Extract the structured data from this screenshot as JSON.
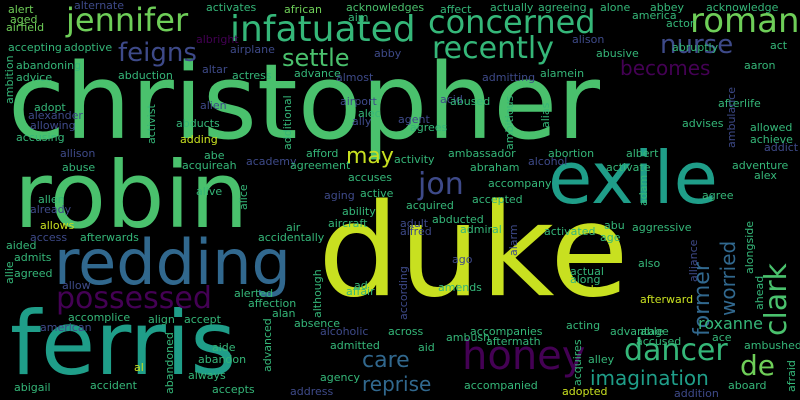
{
  "background": "#000000",
  "palette": {
    "yellow_green": "#c8e020",
    "green": "#4ac16d",
    "teal": "#1f9e89",
    "blue": "#31688e",
    "indigo": "#3e4a89",
    "purple": "#440154",
    "lime": "#6ece58",
    "sea": "#35b779"
  },
  "words": {
    "christopher": "christopher",
    "duke": "duke",
    "robin": "robin",
    "ferris": "ferris",
    "exile": "exile",
    "redding": "redding",
    "infatuated": "infatuated",
    "concerned": "concerned",
    "jennifer": "jennifer",
    "roman": "roman",
    "recently": "recently",
    "settle": "settle",
    "feigns": "feigns",
    "nurse": "nurse",
    "becomes": "becomes",
    "possessed": "possessed",
    "honey": "honey",
    "dancer": "dancer",
    "clark": "clark",
    "former": "former",
    "worried": "worried",
    "roxanne": "roxanne",
    "jon": "jon",
    "may": "may",
    "care": "care",
    "reprise": "reprise",
    "imagination": "imagination",
    "de": "de",
    "alert": "alert",
    "alternate": "alternate",
    "aged": "aged",
    "african": "african",
    "activates": "activates",
    "affect": "affect",
    "actually": "actually",
    "agreeing": "agreeing",
    "alone": "alone",
    "abbey": "abbey",
    "acknowledge": "acknowledge",
    "acknowledges": "acknowledges",
    "america": "america",
    "airfield": "airfield",
    "aim": "aim",
    "actor": "actor",
    "act": "act",
    "accepting": "accepting",
    "adoptive": "adoptive",
    "albright": "albright",
    "airplane": "airplane",
    "abby": "abby",
    "alison": "alison",
    "abusive": "abusive",
    "abruptly": "abruptly",
    "ambition": "ambition",
    "abandoning": "abandoning",
    "advice": "advice",
    "abduction": "abduction",
    "altar": "altar",
    "actress": "actress",
    "advance": "advance",
    "almost": "almost",
    "admitting": "admitting",
    "alamein": "alamein",
    "aaron": "aaron",
    "afterlife": "afterlife",
    "adopt": "adopt",
    "alien": "alien",
    "airport": "airport",
    "acid": "acid",
    "alec": "alec",
    "abused": "abused",
    "alexander": "alexander",
    "allowing": "allowing",
    "abducts": "abducts",
    "activist": "activist",
    "additional": "additional",
    "ally": "ally",
    "agent": "agent",
    "agrees": "agrees",
    "ambitious": "ambitious",
    "alias": "alias",
    "ambulance": "ambulance",
    "advises": "advises",
    "allowed": "allowed",
    "achieve": "achieve",
    "addict": "addict",
    "accusing": "accusing",
    "adding": "adding",
    "allison": "allison",
    "abe": "abe",
    "academy": "academy",
    "afford": "afford",
    "ambassador": "ambassador",
    "abortion": "abortion",
    "albert": "albert",
    "abuse": "abuse",
    "acquireah": "acquireah",
    "agreement": "agreement",
    "activity": "activity",
    "abraham": "abraham",
    "alcohol": "alcohol",
    "activate": "activate",
    "adventure": "adventure",
    "alex": "alex",
    "accompany": "accompany",
    "aging": "aging",
    "active": "active",
    "ability": "ability",
    "acquired": "acquired",
    "accepted": "accepted",
    "accuses": "accuses",
    "alive": "alive",
    "alice": "alice",
    "adam": "adam",
    "agree": "agree",
    "allen": "allen",
    "already": "already",
    "allows": "allows",
    "afterwards": "afterwards",
    "air": "air",
    "aircraft": "aircraft",
    "adult": "adult",
    "alfred": "alfred",
    "abducted": "abducted",
    "admiral": "admiral",
    "activated": "activated",
    "abu": "abu",
    "aggressive": "aggressive",
    "access": "access",
    "accidentally": "accidentally",
    "alarm": "alarm",
    "age": "age",
    "aided": "aided",
    "ago": "ago",
    "admits": "admits",
    "alliance": "alliance",
    "alongside": "alongside",
    "allie": "allie",
    "agreed": "agreed",
    "also": "also",
    "allow": "allow",
    "affair": "affair",
    "according": "according",
    "amends": "amends",
    "actual": "actual",
    "along": "along",
    "alpha": "alpha",
    "afterward": "afterward",
    "ahead": "ahead",
    "alerted": "alerted",
    "although": "although",
    "affection": "affection",
    "alan": "alan",
    "accomplice": "accomplice",
    "align": "align",
    "accept": "accept",
    "absence": "absence",
    "american": "american",
    "alcoholic": "alcoholic",
    "across": "across",
    "accompanies": "accompanies",
    "acting": "acting",
    "advantage": "advantage",
    "able": "able",
    "accused": "accused",
    "ace": "ace",
    "ambushed": "ambushed",
    "ambush": "ambush",
    "aftermath": "aftermath",
    "aid": "aid",
    "admitted": "admitted",
    "aide": "aide",
    "abandon": "abandon",
    "advanced": "advanced",
    "alley": "alley",
    "acquires": "acquires",
    "accompanied": "accompanied",
    "abigail": "abigail",
    "accident": "accident",
    "abandoned": "abandoned",
    "always": "always",
    "accepts": "accepts",
    "address": "address",
    "agency": "agency",
    "adopted": "adopted",
    "addition": "addition",
    "aboard": "aboard",
    "afraid": "afraid",
    "al": "al",
    "ad": "ad"
  }
}
